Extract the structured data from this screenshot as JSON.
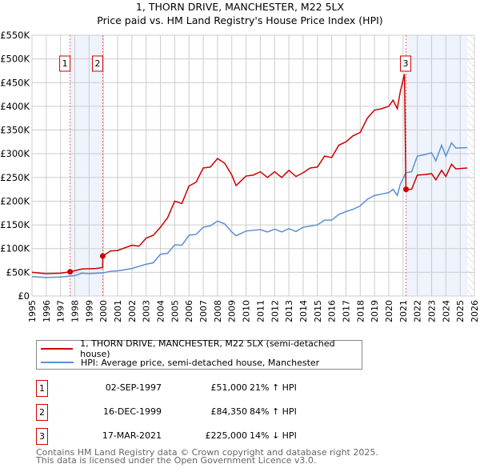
{
  "chart_data": {
    "type": "line",
    "title": "1, THORN DRIVE, MANCHESTER, M22 5LX",
    "subtitle": "Price paid vs. HM Land Registry's House Price Index (HPI)",
    "xlim": [
      1995,
      2026
    ],
    "ylim": [
      0,
      550000
    ],
    "x_ticks": [
      "1995",
      "1996",
      "1997",
      "1998",
      "1999",
      "2000",
      "2001",
      "2002",
      "2003",
      "2004",
      "2005",
      "2006",
      "2007",
      "2008",
      "2009",
      "2010",
      "2011",
      "2012",
      "2013",
      "2014",
      "2015",
      "2016",
      "2017",
      "2018",
      "2019",
      "2020",
      "2021",
      "2022",
      "2023",
      "2024",
      "2025",
      "2026"
    ],
    "y_ticks": [
      {
        "v": 0,
        "l": "£0"
      },
      {
        "v": 50000,
        "l": "£50K"
      },
      {
        "v": 100000,
        "l": "£100K"
      },
      {
        "v": 150000,
        "l": "£150K"
      },
      {
        "v": 200000,
        "l": "£200K"
      },
      {
        "v": 250000,
        "l": "£250K"
      },
      {
        "v": 300000,
        "l": "£300K"
      },
      {
        "v": 350000,
        "l": "£350K"
      },
      {
        "v": 400000,
        "l": "£400K"
      },
      {
        "v": 450000,
        "l": "£450K"
      },
      {
        "v": 500000,
        "l": "£500K"
      },
      {
        "v": 550000,
        "l": "£550K"
      }
    ],
    "grid": true,
    "series": [
      {
        "name": "1, THORN DRIVE, MANCHESTER, M22 5LX (semi-detached house)",
        "color": "#cc0000",
        "points": [
          [
            1995,
            50
          ],
          [
            1996,
            47
          ],
          [
            1997,
            48
          ],
          [
            1997.67,
            51
          ],
          [
            1998.5,
            57
          ],
          [
            1999.5,
            58
          ],
          [
            1999.95,
            60
          ],
          [
            1999.96,
            84.35
          ],
          [
            2000.5,
            95
          ],
          [
            2001,
            96
          ],
          [
            2002,
            107
          ],
          [
            2002.5,
            105
          ],
          [
            2003,
            122
          ],
          [
            2003.5,
            128
          ],
          [
            2004,
            145
          ],
          [
            2004.5,
            165
          ],
          [
            2005,
            200
          ],
          [
            2005.5,
            195
          ],
          [
            2006,
            232
          ],
          [
            2006.5,
            240
          ],
          [
            2007,
            270
          ],
          [
            2007.5,
            272
          ],
          [
            2008,
            290
          ],
          [
            2008.5,
            280
          ],
          [
            2009,
            255
          ],
          [
            2009.3,
            233
          ],
          [
            2010,
            253
          ],
          [
            2010.5,
            255
          ],
          [
            2011,
            262
          ],
          [
            2011.5,
            250
          ],
          [
            2012,
            262
          ],
          [
            2012.5,
            250
          ],
          [
            2013,
            265
          ],
          [
            2013.5,
            252
          ],
          [
            2014,
            260
          ],
          [
            2014.5,
            270
          ],
          [
            2015,
            272
          ],
          [
            2015.5,
            295
          ],
          [
            2016,
            292
          ],
          [
            2016.5,
            318
          ],
          [
            2017,
            325
          ],
          [
            2017.5,
            338
          ],
          [
            2018,
            345
          ],
          [
            2018.5,
            375
          ],
          [
            2019,
            392
          ],
          [
            2019.5,
            395
          ],
          [
            2020,
            400
          ],
          [
            2020.3,
            413
          ],
          [
            2020.6,
            395
          ],
          [
            2020.8,
            430
          ],
          [
            2021.1,
            468
          ],
          [
            2021.2,
            225
          ],
          [
            2021.6,
            225
          ],
          [
            2022,
            255
          ],
          [
            2022.5,
            256
          ],
          [
            2023,
            258
          ],
          [
            2023.3,
            245
          ],
          [
            2023.7,
            265
          ],
          [
            2024,
            252
          ],
          [
            2024.4,
            278
          ],
          [
            2024.7,
            268
          ],
          [
            2025.5,
            270
          ]
        ]
      },
      {
        "name": "HPI: Average price, semi-detached house, Manchester",
        "color": "#5b8fd4",
        "points": [
          [
            1995,
            41
          ],
          [
            1996,
            39
          ],
          [
            1997,
            40
          ],
          [
            1998,
            43
          ],
          [
            1998.5,
            48
          ],
          [
            1999,
            47
          ],
          [
            2000,
            49
          ],
          [
            2000.5,
            52
          ],
          [
            2001,
            53
          ],
          [
            2002,
            58
          ],
          [
            2003,
            67
          ],
          [
            2003.5,
            70
          ],
          [
            2004,
            88
          ],
          [
            2004.5,
            90
          ],
          [
            2005,
            108
          ],
          [
            2005.5,
            107
          ],
          [
            2006,
            128
          ],
          [
            2006.5,
            130
          ],
          [
            2007,
            145
          ],
          [
            2007.5,
            148
          ],
          [
            2008,
            158
          ],
          [
            2008.5,
            152
          ],
          [
            2009,
            135
          ],
          [
            2009.3,
            127
          ],
          [
            2010,
            137
          ],
          [
            2011,
            140
          ],
          [
            2011.5,
            135
          ],
          [
            2012,
            141
          ],
          [
            2012.5,
            135
          ],
          [
            2013,
            142
          ],
          [
            2013.5,
            136
          ],
          [
            2014,
            145
          ],
          [
            2015,
            150
          ],
          [
            2015.5,
            160
          ],
          [
            2016,
            160
          ],
          [
            2016.5,
            172
          ],
          [
            2017,
            178
          ],
          [
            2017.5,
            183
          ],
          [
            2018,
            190
          ],
          [
            2018.5,
            204
          ],
          [
            2019,
            212
          ],
          [
            2019.5,
            215
          ],
          [
            2020,
            218
          ],
          [
            2020.3,
            225
          ],
          [
            2020.6,
            212
          ],
          [
            2020.8,
            235
          ],
          [
            2021.2,
            260
          ],
          [
            2021.6,
            262
          ],
          [
            2022,
            295
          ],
          [
            2022.5,
            298
          ],
          [
            2023,
            302
          ],
          [
            2023.3,
            285
          ],
          [
            2023.7,
            318
          ],
          [
            2024,
            295
          ],
          [
            2024.4,
            323
          ],
          [
            2024.7,
            312
          ],
          [
            2025.5,
            313
          ]
        ]
      }
    ],
    "y_unit": "thousands GBP",
    "sales": [
      {
        "id": "1",
        "x": 1997.67,
        "y": 51,
        "date": "02-SEP-1997",
        "price": "£51,000",
        "hpi": "21% ↑ HPI"
      },
      {
        "id": "2",
        "x": 1999.96,
        "y": 84.35,
        "date": "16-DEC-1999",
        "price": "£84,350",
        "hpi": "84% ↑ HPI"
      },
      {
        "id": "3",
        "x": 2021.21,
        "y": 225,
        "date": "17-MAR-2021",
        "price": "£225,000",
        "hpi": "14% ↓ HPI"
      }
    ],
    "shaded": [
      [
        1997.67,
        1999.96
      ],
      [
        2021.21,
        2025.5
      ]
    ],
    "hatched_from": 2025.5
  },
  "footer": [
    "Contains HM Land Registry data © Crown copyright and database right 2025.",
    "This data is licensed under the Open Government Licence v3.0."
  ]
}
